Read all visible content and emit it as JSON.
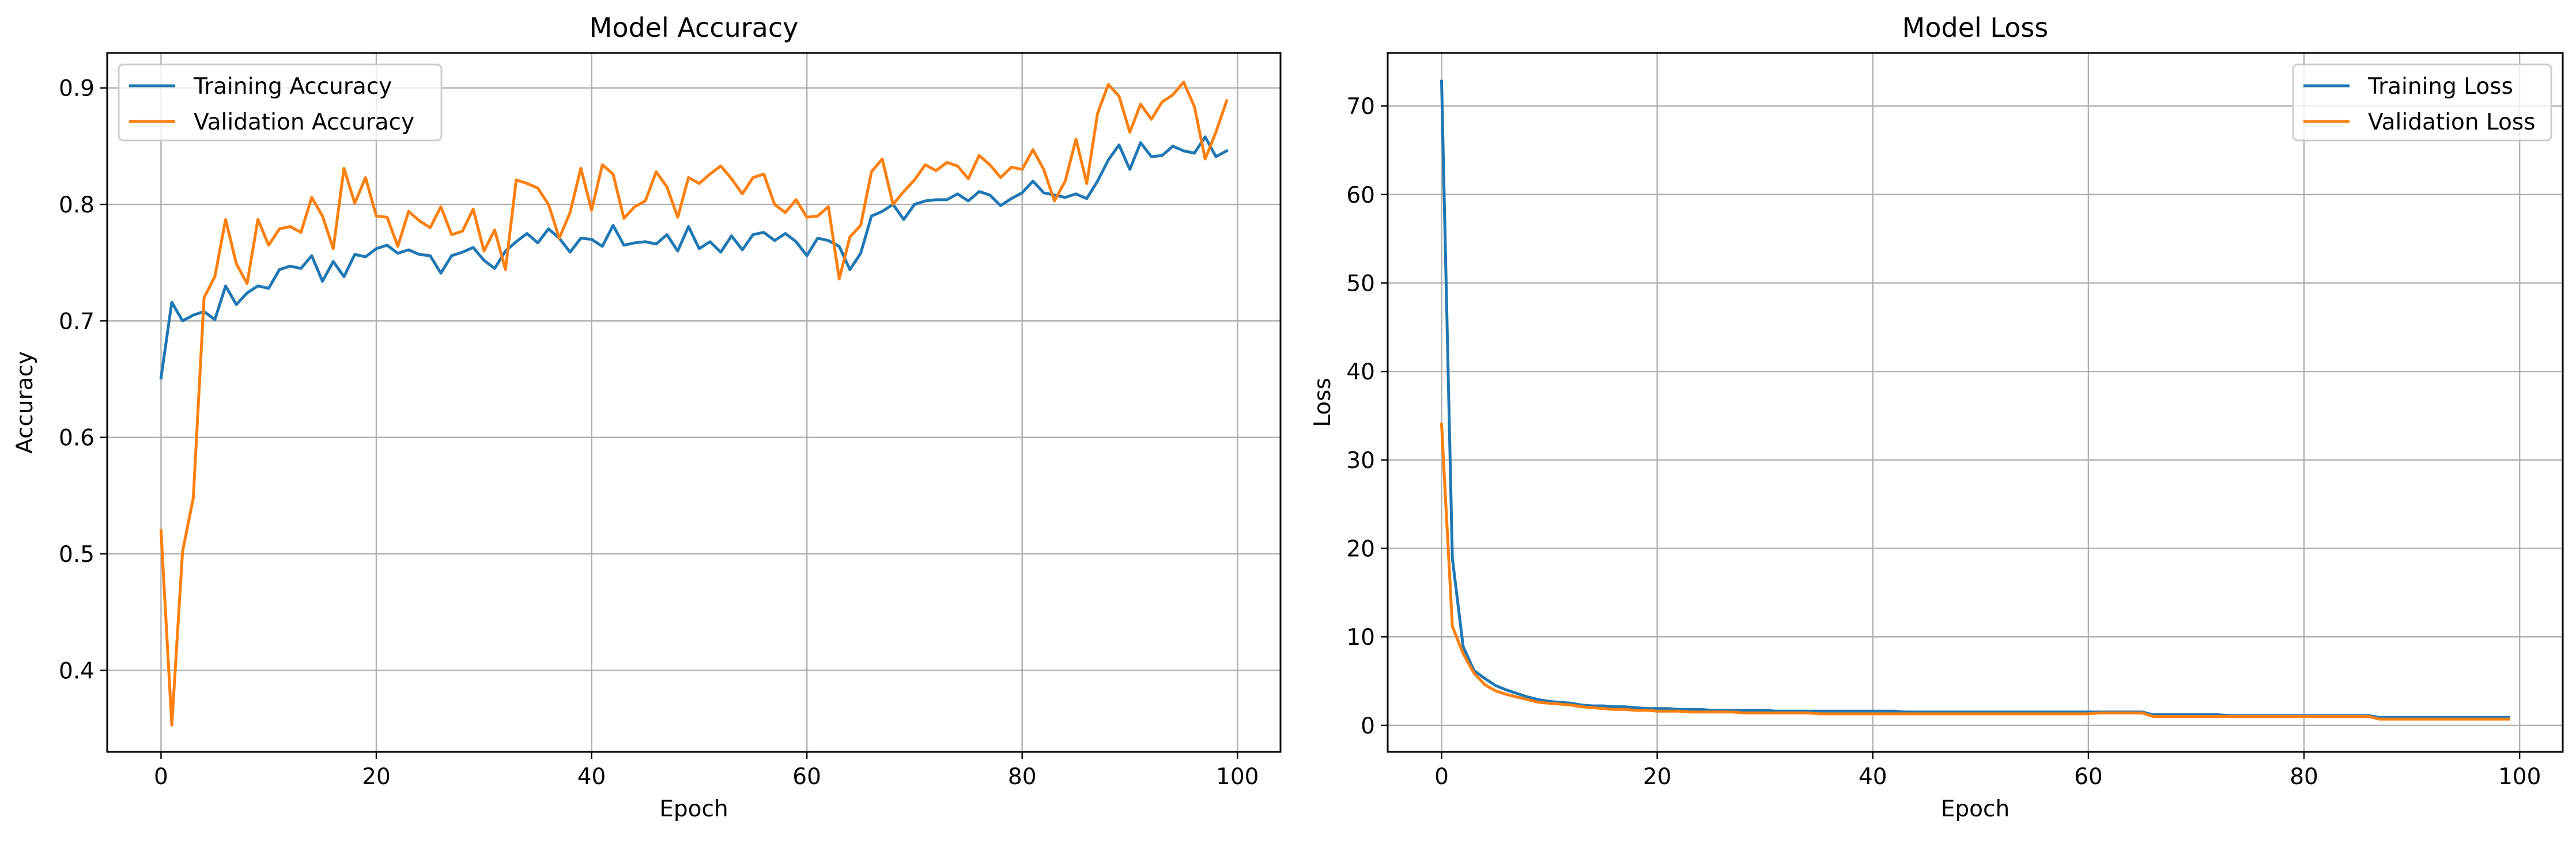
{
  "chart_data": [
    {
      "type": "line",
      "title": "Model Accuracy",
      "xlabel": "Epoch",
      "ylabel": "Accuracy",
      "xlim": [
        -5,
        104
      ],
      "ylim": [
        0.33,
        0.93
      ],
      "xticks": [
        0,
        20,
        40,
        60,
        80,
        100
      ],
      "yticks": [
        0.4,
        0.5,
        0.6,
        0.7,
        0.8,
        0.9
      ],
      "grid": true,
      "legend_position": "upper left",
      "series": [
        {
          "name": "Training Accuracy",
          "color": "#1f77b4",
          "values": [
            0.651,
            0.716,
            0.7,
            0.705,
            0.708,
            0.701,
            0.73,
            0.714,
            0.724,
            0.73,
            0.728,
            0.744,
            0.747,
            0.745,
            0.756,
            0.734,
            0.751,
            0.738,
            0.757,
            0.755,
            0.762,
            0.765,
            0.758,
            0.761,
            0.757,
            0.756,
            0.741,
            0.756,
            0.759,
            0.763,
            0.752,
            0.745,
            0.76,
            0.768,
            0.775,
            0.767,
            0.779,
            0.771,
            0.759,
            0.771,
            0.77,
            0.764,
            0.782,
            0.765,
            0.767,
            0.768,
            0.766,
            0.774,
            0.76,
            0.781,
            0.762,
            0.768,
            0.759,
            0.773,
            0.761,
            0.774,
            0.776,
            0.769,
            0.775,
            0.768,
            0.756,
            0.771,
            0.769,
            0.764,
            0.744,
            0.758,
            0.79,
            0.794,
            0.8,
            0.787,
            0.8,
            0.803,
            0.804,
            0.804,
            0.809,
            0.803,
            0.811,
            0.808,
            0.799,
            0.805,
            0.81,
            0.82,
            0.81,
            0.808,
            0.806,
            0.809,
            0.805,
            0.82,
            0.838,
            0.851,
            0.83,
            0.853,
            0.841,
            0.842,
            0.85,
            0.846,
            0.844,
            0.858,
            0.841,
            0.846
          ]
        },
        {
          "name": "Validation Accuracy",
          "color": "#ff7f0e",
          "values": [
            0.52,
            0.353,
            0.502,
            0.548,
            0.72,
            0.738,
            0.787,
            0.749,
            0.732,
            0.787,
            0.765,
            0.779,
            0.781,
            0.776,
            0.806,
            0.79,
            0.762,
            0.831,
            0.801,
            0.823,
            0.79,
            0.789,
            0.764,
            0.794,
            0.786,
            0.78,
            0.798,
            0.774,
            0.777,
            0.796,
            0.76,
            0.778,
            0.744,
            0.821,
            0.818,
            0.814,
            0.8,
            0.771,
            0.793,
            0.831,
            0.795,
            0.834,
            0.826,
            0.788,
            0.798,
            0.803,
            0.828,
            0.815,
            0.789,
            0.823,
            0.818,
            0.826,
            0.833,
            0.822,
            0.809,
            0.823,
            0.826,
            0.8,
            0.793,
            0.804,
            0.789,
            0.79,
            0.798,
            0.736,
            0.772,
            0.782,
            0.828,
            0.839,
            0.8,
            0.811,
            0.821,
            0.834,
            0.829,
            0.836,
            0.833,
            0.822,
            0.842,
            0.834,
            0.823,
            0.832,
            0.83,
            0.847,
            0.83,
            0.803,
            0.82,
            0.856,
            0.818,
            0.878,
            0.903,
            0.893,
            0.862,
            0.886,
            0.873,
            0.888,
            0.894,
            0.905,
            0.884,
            0.839,
            0.862,
            0.889
          ]
        }
      ]
    },
    {
      "type": "line",
      "title": "Model Loss",
      "xlabel": "Epoch",
      "ylabel": "Loss",
      "xlim": [
        -5,
        104
      ],
      "ylim": [
        -3,
        76
      ],
      "xticks": [
        0,
        20,
        40,
        60,
        80,
        100
      ],
      "yticks": [
        0,
        10,
        20,
        30,
        40,
        50,
        60,
        70
      ],
      "grid": true,
      "legend_position": "upper right",
      "series": [
        {
          "name": "Training Loss",
          "color": "#1f77b4",
          "values": [
            72.8,
            18.9,
            8.9,
            6.2,
            5.3,
            4.5,
            4.0,
            3.6,
            3.2,
            2.9,
            2.7,
            2.6,
            2.5,
            2.3,
            2.2,
            2.2,
            2.1,
            2.1,
            2.0,
            1.9,
            1.9,
            1.9,
            1.8,
            1.8,
            1.8,
            1.7,
            1.7,
            1.7,
            1.7,
            1.7,
            1.7,
            1.6,
            1.6,
            1.6,
            1.6,
            1.6,
            1.6,
            1.6,
            1.6,
            1.6,
            1.6,
            1.6,
            1.6,
            1.5,
            1.5,
            1.5,
            1.5,
            1.5,
            1.5,
            1.5,
            1.5,
            1.5,
            1.5,
            1.5,
            1.5,
            1.5,
            1.5,
            1.5,
            1.5,
            1.5,
            1.5,
            1.5,
            1.5,
            1.5,
            1.5,
            1.5,
            1.2,
            1.2,
            1.2,
            1.2,
            1.2,
            1.2,
            1.2,
            1.1,
            1.1,
            1.1,
            1.1,
            1.1,
            1.1,
            1.1,
            1.1,
            1.1,
            1.1,
            1.1,
            1.1,
            1.1,
            1.1,
            0.9,
            0.9,
            0.9,
            0.9,
            0.9,
            0.9,
            0.9,
            0.9,
            0.9,
            0.9,
            0.9,
            0.9,
            0.9
          ]
        },
        {
          "name": "Validation Loss",
          "color": "#ff7f0e",
          "values": [
            34.0,
            11.2,
            8.1,
            5.9,
            4.6,
            3.9,
            3.5,
            3.2,
            2.9,
            2.6,
            2.5,
            2.4,
            2.3,
            2.1,
            2.0,
            1.9,
            1.8,
            1.8,
            1.7,
            1.7,
            1.6,
            1.6,
            1.6,
            1.5,
            1.5,
            1.5,
            1.5,
            1.5,
            1.4,
            1.4,
            1.4,
            1.4,
            1.4,
            1.4,
            1.4,
            1.3,
            1.3,
            1.3,
            1.3,
            1.3,
            1.3,
            1.3,
            1.3,
            1.3,
            1.3,
            1.3,
            1.3,
            1.3,
            1.3,
            1.3,
            1.3,
            1.3,
            1.3,
            1.3,
            1.3,
            1.3,
            1.3,
            1.3,
            1.3,
            1.3,
            1.3,
            1.4,
            1.4,
            1.4,
            1.4,
            1.4,
            1.0,
            1.0,
            1.0,
            1.0,
            1.0,
            1.0,
            1.0,
            1.0,
            1.0,
            1.0,
            1.0,
            1.0,
            1.0,
            1.0,
            1.0,
            1.0,
            1.0,
            1.0,
            1.0,
            1.0,
            1.0,
            0.7,
            0.7,
            0.7,
            0.7,
            0.7,
            0.7,
            0.7,
            0.7,
            0.7,
            0.7,
            0.7,
            0.7,
            0.7
          ]
        }
      ]
    }
  ]
}
